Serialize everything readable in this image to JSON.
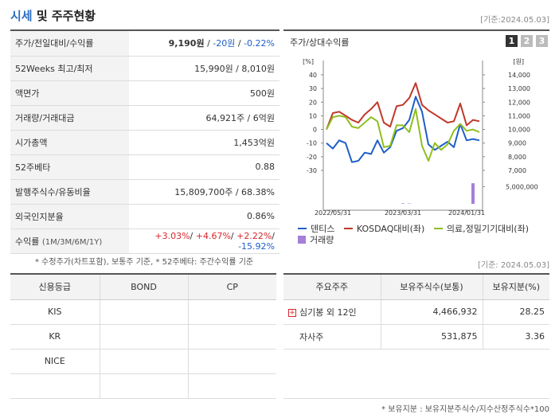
{
  "header": {
    "title_accent": "시세",
    "title_rest": " 및 주주현황",
    "base_date": "[기준:2024.05.03]"
  },
  "quote": {
    "rows": [
      {
        "label": "주가/전일대비/수익률"
      },
      {
        "label": "52Weeks 최고/최저",
        "value": "15,990원 / 8,010원"
      },
      {
        "label": "액면가",
        "value": "500원"
      },
      {
        "label": "거래량/거래대금",
        "value": "64,921주 / 6억원"
      },
      {
        "label": "시가총액",
        "value": "1,453억원"
      },
      {
        "label": "52주베타",
        "value": "0.88"
      },
      {
        "label": "발행주식수/유동비율",
        "value": "15,809,700주 / 68.38%"
      },
      {
        "label": "외국인지분율",
        "value": "0.86%"
      },
      {
        "label": "수익률",
        "label_sub": "(1M/3M/6M/1Y)"
      }
    ],
    "price": "9,190원",
    "change": "-20원",
    "change_rate": "-0.22%",
    "returns": {
      "m1": "+3.03%",
      "m3": "+4.67%",
      "m6": "+2.22%",
      "y1": "-15.92%"
    },
    "note": "* 수정주가(차트포함), 보통주 기준, * 52주베타: 주간수익률 기준"
  },
  "chart_panel": {
    "title": "주가/상대수익률",
    "pages": [
      "1",
      "2",
      "3"
    ],
    "unit_left": "[%]",
    "unit_right": "[원]",
    "legend": [
      {
        "label": "덴티스",
        "color": "#1f5ec9"
      },
      {
        "label": "KOSDAQ대비(좌)",
        "color": "#c0392b"
      },
      {
        "label": "의료,정밀기기대비(좌)",
        "color": "#8fbf1f"
      },
      {
        "label": "거래량",
        "color": "#a67fd9"
      }
    ]
  },
  "chart_data": {
    "type": "line",
    "x_ticks": [
      "2022/05/31",
      "2023/03/31",
      "2024/01/31"
    ],
    "y_left_ticks": [
      "40",
      "30",
      "20",
      "10",
      "0",
      "-10",
      "-20",
      "-30"
    ],
    "y_right_ticks": [
      "14,000",
      "13,000",
      "12,000",
      "11,000",
      "10,000",
      "9,000",
      "8,000",
      "7,000"
    ],
    "volume_tick": "5,000,000",
    "ylim_left": [
      -30,
      40
    ],
    "ylim_right": [
      7000,
      14000
    ],
    "volume_max": 6500000,
    "n_points": 25,
    "series": [
      {
        "name": "덴티스",
        "axis": "right",
        "color": "#1f5ec9",
        "values": [
          9000,
          8600,
          9200,
          9000,
          7600,
          7700,
          8300,
          8200,
          9200,
          8300,
          8700,
          9900,
          10100,
          10700,
          12400,
          11300,
          8900,
          8500,
          8800,
          9100,
          8700,
          10400,
          9200,
          9300,
          9200
        ]
      },
      {
        "name": "KOSDAQ대비(좌)",
        "axis": "left",
        "color": "#c0392b",
        "values": [
          0,
          12,
          13,
          10,
          7,
          5,
          11,
          15,
          20,
          5,
          2,
          17,
          18,
          23,
          34,
          18,
          14,
          11,
          8,
          5,
          6,
          19,
          3,
          7,
          6
        ]
      },
      {
        "name": "의료,정밀기기대비(좌)",
        "axis": "left",
        "color": "#8fbf1f",
        "values": [
          0,
          9,
          10,
          9,
          2,
          1,
          5,
          9,
          6,
          -13,
          -12,
          3,
          3,
          -2,
          15,
          -12,
          -23,
          -10,
          -15,
          -11,
          -1,
          4,
          -1,
          0,
          -2
        ]
      },
      {
        "name": "거래량",
        "axis": "volume",
        "color": "#a67fd9",
        "values": [
          0,
          0,
          0,
          0,
          0,
          0,
          0,
          0,
          0,
          0,
          0,
          0,
          150000,
          100000,
          0,
          0,
          0,
          0,
          0,
          0,
          0,
          0,
          0,
          6000000,
          0
        ]
      }
    ]
  },
  "credit": {
    "base_date": "[기준: 2024.05.03]",
    "headers": [
      "신용등급",
      "BOND",
      "CP"
    ],
    "rows": [
      {
        "name": "KIS",
        "bond": "",
        "cp": ""
      },
      {
        "name": "KR",
        "bond": "",
        "cp": ""
      },
      {
        "name": "NICE",
        "bond": "",
        "cp": ""
      },
      {
        "name": "",
        "bond": "",
        "cp": ""
      }
    ]
  },
  "holders": {
    "headers": [
      "주요주주",
      "보유주식수(보통)",
      "보유지분(%)"
    ],
    "rows": [
      {
        "name": "심기봉 외 12인",
        "shares": "4,466,932",
        "pct": "28.25"
      },
      {
        "name": "자사주",
        "shares": "531,875",
        "pct": "3.36"
      }
    ],
    "note": "* 보유지분 : 보유지분주식수/지수산정주식수*100"
  }
}
